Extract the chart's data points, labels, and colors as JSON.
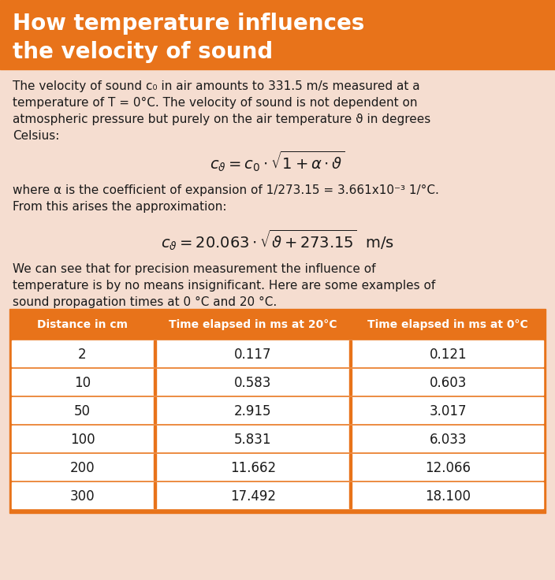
{
  "title_line1": "How temperature influences",
  "title_line2": "the velocity of sound",
  "title_bg_color": "#E8731A",
  "title_text_color": "#FFFFFF",
  "body_bg_color": "#F5DDD0",
  "body_text_color": "#1a1a1a",
  "orange_color": "#E8731A",
  "para1_parts": [
    {
      "text": "The velocity of sound c",
      "style": "normal"
    },
    {
      "text": "0",
      "style": "sub"
    },
    {
      "text": " in air amounts to 331.5 m/s measured at a\ntemperature of T = 0°C. The velocity of sound is not dependent on\natmospheric pressure but purely on the air temperature ϑ in degrees\nCelsius:",
      "style": "normal"
    }
  ],
  "para1": "The velocity of sound c₀ in air amounts to 331.5 m/s measured at a\ntemperature of T = 0°C. The velocity of sound is not dependent on\natmospheric pressure but purely on the air temperature ϑ in degrees\nCelsius:",
  "formula1": "$c_{\\vartheta} = c_0 \\cdot \\sqrt{1 + \\alpha \\cdot \\vartheta}$",
  "para2": "where α is the coefficient of expansion of 1/273.15 = 3.661x10⁻³ 1/°C.\nFrom this arises the approximation:",
  "formula2": "$c_{\\vartheta} = 20.063 \\cdot \\sqrt{\\vartheta + 273.15}$  m/s",
  "para3": "We can see that for precision measurement the influence of\ntemperature is by no means insignificant. Here are some examples of\nsound propagation times at 0 °C and 20 °C.",
  "table_headers": [
    "Distance in cm",
    "Time elapsed in ms at 20°C",
    "Time elapsed in ms at 0°C"
  ],
  "table_data": [
    [
      "2",
      "0.117",
      "0.121"
    ],
    [
      "10",
      "0.583",
      "0.603"
    ],
    [
      "50",
      "2.915",
      "3.017"
    ],
    [
      "100",
      "5.831",
      "6.033"
    ],
    [
      "200",
      "11.662",
      "12.066"
    ],
    [
      "300",
      "17.492",
      "18.100"
    ]
  ],
  "fig_width": 7.04,
  "fig_height": 7.36,
  "dpi": 100
}
